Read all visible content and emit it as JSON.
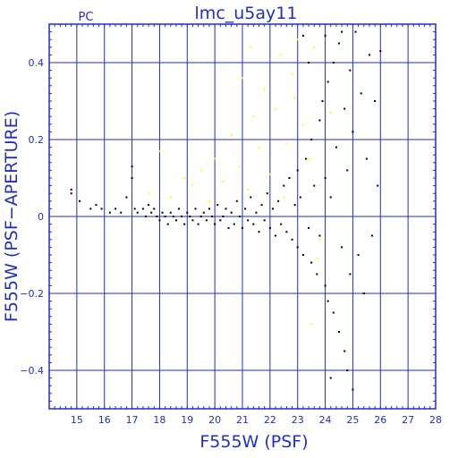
{
  "chart_data": {
    "type": "scatter",
    "title": "lmc_u5ay11",
    "corner_label": "PC",
    "xlabel": "F555W (PSF)",
    "ylabel": "F555W (PSF−APERTURE)",
    "xlim": [
      14,
      28
    ],
    "ylim": [
      -0.5,
      0.5
    ],
    "x_ticks": [
      15,
      16,
      17,
      18,
      19,
      20,
      21,
      22,
      23,
      24,
      25,
      26,
      27,
      28
    ],
    "y_ticks": [
      -0.4,
      -0.2,
      0,
      0.2,
      0.4
    ],
    "y_tick_labels": [
      "−0.4",
      "−0.2",
      "0",
      "0.2",
      "0.4"
    ],
    "grid": true,
    "colors": {
      "axis": "#1f2fbf",
      "black_points": "#000000",
      "yellow_points": "#ffff00"
    },
    "series": [
      {
        "color": "black",
        "points": [
          [
            14.8,
            0.06
          ],
          [
            14.8,
            0.07
          ],
          [
            15.1,
            0.04
          ],
          [
            15.5,
            0.02
          ],
          [
            15.7,
            0.03
          ],
          [
            15.9,
            0.02
          ],
          [
            16.2,
            0.01
          ],
          [
            16.4,
            0.02
          ],
          [
            16.6,
            0.01
          ],
          [
            16.8,
            0.05
          ],
          [
            17.0,
            0.13
          ],
          [
            17.0,
            0.1
          ],
          [
            17.1,
            0.02
          ],
          [
            17.2,
            0.01
          ],
          [
            17.4,
            0.02
          ],
          [
            17.5,
            0.0
          ],
          [
            17.6,
            0.03
          ],
          [
            17.7,
            0.01
          ],
          [
            17.8,
            0.02
          ],
          [
            17.9,
            0.0
          ],
          [
            18.0,
            -0.01
          ],
          [
            18.1,
            0.01
          ],
          [
            18.2,
            0.0
          ],
          [
            18.3,
            -0.02
          ],
          [
            18.4,
            0.01
          ],
          [
            18.5,
            0.0
          ],
          [
            18.6,
            -0.01
          ],
          [
            18.7,
            0.02
          ],
          [
            18.8,
            0.0
          ],
          [
            18.9,
            -0.02
          ],
          [
            19.0,
            0.01
          ],
          [
            19.1,
            0.0
          ],
          [
            19.2,
            -0.01
          ],
          [
            19.3,
            0.02
          ],
          [
            19.4,
            -0.02
          ],
          [
            19.5,
            0.0
          ],
          [
            19.6,
            0.01
          ],
          [
            19.7,
            -0.01
          ],
          [
            19.8,
            0.02
          ],
          [
            19.9,
            0.0
          ],
          [
            20.0,
            -0.02
          ],
          [
            20.1,
            0.03
          ],
          [
            20.2,
            -0.01
          ],
          [
            20.3,
            0.0
          ],
          [
            20.4,
            0.02
          ],
          [
            20.5,
            -0.03
          ],
          [
            20.6,
            0.01
          ],
          [
            20.7,
            -0.02
          ],
          [
            20.8,
            0.04
          ],
          [
            20.9,
            0.0
          ],
          [
            21.0,
            -0.03
          ],
          [
            21.1,
            0.02
          ],
          [
            21.2,
            -0.01
          ],
          [
            21.3,
            0.05
          ],
          [
            21.4,
            -0.02
          ],
          [
            21.5,
            0.01
          ],
          [
            21.6,
            -0.04
          ],
          [
            21.7,
            0.03
          ],
          [
            21.8,
            -0.01
          ],
          [
            21.9,
            0.06
          ],
          [
            22.0,
            -0.03
          ],
          [
            22.1,
            0.02
          ],
          [
            22.2,
            -0.05
          ],
          [
            22.3,
            0.04
          ],
          [
            22.4,
            -0.02
          ],
          [
            22.5,
            0.08
          ],
          [
            22.6,
            -0.04
          ],
          [
            22.7,
            0.1
          ],
          [
            22.8,
            -0.06
          ],
          [
            22.9,
            0.03
          ],
          [
            23.0,
            0.12
          ],
          [
            23.0,
            -0.08
          ],
          [
            23.1,
            0.05
          ],
          [
            23.2,
            -0.1
          ],
          [
            23.3,
            0.15
          ],
          [
            23.4,
            -0.03
          ],
          [
            23.5,
            0.2
          ],
          [
            23.5,
            -0.12
          ],
          [
            23.6,
            0.08
          ],
          [
            23.7,
            -0.15
          ],
          [
            23.8,
            0.25
          ],
          [
            23.8,
            -0.05
          ],
          [
            23.9,
            0.3
          ],
          [
            24.0,
            -0.18
          ],
          [
            24.0,
            0.1
          ],
          [
            24.1,
            0.35
          ],
          [
            24.1,
            -0.22
          ],
          [
            24.2,
            0.05
          ],
          [
            24.3,
            0.4
          ],
          [
            24.3,
            -0.25
          ],
          [
            24.4,
            0.18
          ],
          [
            24.5,
            -0.3
          ],
          [
            24.5,
            0.45
          ],
          [
            24.6,
            -0.08
          ],
          [
            24.7,
            0.28
          ],
          [
            24.7,
            -0.35
          ],
          [
            24.8,
            0.12
          ],
          [
            24.8,
            -0.4
          ],
          [
            24.9,
            0.38
          ],
          [
            24.9,
            -0.15
          ],
          [
            25.0,
            0.22
          ],
          [
            25.0,
            -0.45
          ],
          [
            25.1,
            0.48
          ],
          [
            25.2,
            -0.1
          ],
          [
            25.3,
            0.32
          ],
          [
            25.4,
            -0.2
          ],
          [
            25.5,
            0.15
          ],
          [
            25.6,
            0.42
          ],
          [
            25.7,
            -0.05
          ],
          [
            25.8,
            0.3
          ],
          [
            25.9,
            0.08
          ],
          [
            26.0,
            0.43
          ],
          [
            24.2,
            -0.42
          ],
          [
            23.4,
            0.4
          ],
          [
            23.2,
            0.47
          ],
          [
            24.0,
            0.47
          ],
          [
            24.6,
            0.48
          ]
        ]
      },
      {
        "color": "yellow",
        "points": [
          [
            17.6,
            0.06
          ],
          [
            18.0,
            0.17
          ],
          [
            18.4,
            0.05
          ],
          [
            18.9,
            0.1
          ],
          [
            19.2,
            0.08
          ],
          [
            19.5,
            0.12
          ],
          [
            19.8,
            0.04
          ],
          [
            20.0,
            0.15
          ],
          [
            20.3,
            0.09
          ],
          [
            20.6,
            0.21
          ],
          [
            20.9,
            0.13
          ],
          [
            21.0,
            0.36
          ],
          [
            21.2,
            0.07
          ],
          [
            21.4,
            0.26
          ],
          [
            21.6,
            0.18
          ],
          [
            21.8,
            0.33
          ],
          [
            22.0,
            0.11
          ],
          [
            22.2,
            0.28
          ],
          [
            22.4,
            0.42
          ],
          [
            22.6,
            0.19
          ],
          [
            22.8,
            0.37
          ],
          [
            23.0,
            0.46
          ],
          [
            23.2,
            0.24
          ],
          [
            23.4,
            0.15
          ],
          [
            23.6,
            0.44
          ],
          [
            23.8,
            -0.06
          ],
          [
            23.5,
            -0.28
          ],
          [
            23.7,
            -0.11
          ],
          [
            24.2,
            0.27
          ],
          [
            22.5,
            0.05
          ],
          [
            21.3,
            0.44
          ],
          [
            22.9,
            0.31
          ]
        ]
      }
    ]
  }
}
